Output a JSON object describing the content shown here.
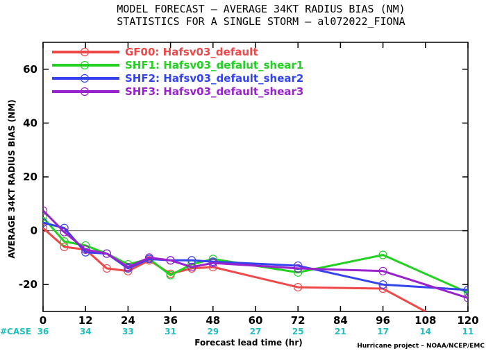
{
  "title_line1": "MODEL FORECAST – AVERAGE 34KT RADIUS BIAS (NM)",
  "title_line2": "STATISTICS FOR A SINGLE STORM – al072022_FIONA",
  "credit": "Hurricane project – NOAA/NCEP/EMC",
  "case_label": "#CASE",
  "colors": {
    "case_counts": "#1fbfbf",
    "zero_line": "#555555",
    "axes": "#000000"
  },
  "chart_data": {
    "type": "line",
    "title": "MODEL FORECAST – AVERAGE 34KT RADIUS BIAS (NM)",
    "subtitle": "STATISTICS FOR A SINGLE STORM – al072022_FIONA",
    "xlabel": "Forecast lead time (hr)",
    "ylabel": "AVERAGE 34KT RADIUS BIAS (NM)",
    "xlim": [
      0,
      120
    ],
    "ylim": [
      -30,
      70
    ],
    "xticks": [
      0,
      12,
      24,
      36,
      48,
      60,
      72,
      84,
      96,
      108,
      120
    ],
    "yticks": [
      -20,
      0,
      20,
      40,
      60
    ],
    "grid": false,
    "legend_position": "top-left",
    "case_counts": {
      "x": [
        0,
        12,
        24,
        36,
        48,
        60,
        72,
        84,
        96,
        108,
        120
      ],
      "values": [
        "36",
        "34",
        "33",
        "31",
        "29",
        "27",
        "25",
        "21",
        "17",
        "14",
        "11"
      ]
    },
    "series": [
      {
        "name": "GF00: Hafsv03_default",
        "color": "#f04848",
        "x": [
          0,
          6,
          12,
          18,
          24,
          30,
          36,
          42,
          48,
          72,
          96,
          108
        ],
        "y": [
          1,
          -6,
          -7,
          -14,
          -15,
          -11,
          -16,
          -14,
          -13.5,
          -21,
          -21.5,
          -30
        ]
      },
      {
        "name": "SHF1: Hafsv03_defalut_shear1",
        "color": "#22d122",
        "x": [
          0,
          6,
          12,
          18,
          24,
          30,
          36,
          42,
          48,
          72,
          96,
          120
        ],
        "y": [
          5,
          -4,
          -5.5,
          -8.5,
          -12.5,
          -10.5,
          -16.5,
          -12.5,
          -10.5,
          -15.5,
          -9,
          -23
        ]
      },
      {
        "name": "SHF2: Hafsv03_default_shear2",
        "color": "#3344ee",
        "x": [
          0,
          6,
          12,
          18,
          24,
          30,
          36,
          42,
          48,
          72,
          96,
          120
        ],
        "y": [
          3,
          1,
          -8,
          -8.5,
          -14,
          -10.5,
          -11,
          -11,
          -11.5,
          -13,
          -20,
          -22
        ]
      },
      {
        "name": "SHF3: Hafsv03_default_shear3",
        "color": "#9922cc",
        "x": [
          0,
          6,
          12,
          18,
          24,
          30,
          36,
          42,
          48,
          72,
          96,
          120
        ],
        "y": [
          7.5,
          -0.5,
          -7,
          -8.5,
          -13.5,
          -10,
          -11,
          -13.5,
          -12,
          -14,
          -15,
          -25
        ]
      }
    ]
  }
}
